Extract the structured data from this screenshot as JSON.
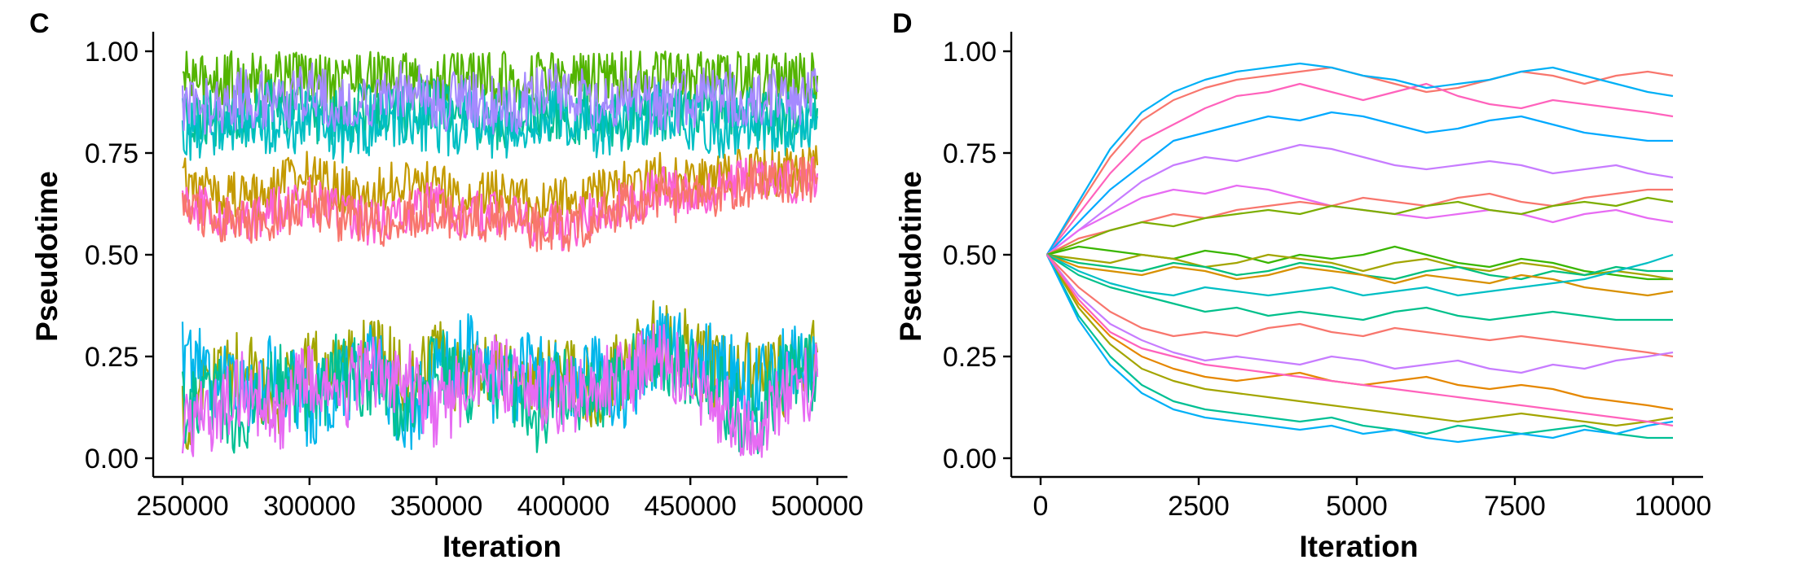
{
  "chart_data": [
    {
      "panel": "C",
      "type": "line",
      "xlabel": "Iteration",
      "ylabel": "Pseudotime",
      "xlim": [
        250000,
        500000
      ],
      "ylim": [
        0,
        1
      ],
      "x_ticks": [
        250000,
        300000,
        350000,
        400000,
        450000,
        500000
      ],
      "x_tick_labels": [
        "250000",
        "300000",
        "350000",
        "400000",
        "450000",
        "500000"
      ],
      "y_ticks": [
        0,
        0.25,
        0.5,
        0.75,
        1
      ],
      "y_tick_labels": [
        "0.00",
        "0.25",
        "0.50",
        "0.75",
        "1.00"
      ],
      "grid": false,
      "legend": "none",
      "x": [
        250000,
        262500,
        275000,
        287500,
        300000,
        312500,
        325000,
        337500,
        350000,
        362500,
        375000,
        387500,
        400000,
        412500,
        425000,
        437500,
        450000,
        462500,
        475000,
        487500,
        500000
      ],
      "series": [
        {
          "color": "#53B400",
          "values": [
            0.93,
            0.95,
            0.92,
            0.94,
            0.96,
            0.93,
            0.95,
            0.94,
            0.92,
            0.95,
            0.93,
            0.94,
            0.96,
            0.94,
            0.93,
            0.95,
            0.94,
            0.96,
            0.93,
            0.95,
            0.94
          ]
        },
        {
          "color": "#00C094",
          "values": [
            0.86,
            0.84,
            0.82,
            0.87,
            0.85,
            0.83,
            0.86,
            0.84,
            0.88,
            0.85,
            0.83,
            0.86,
            0.84,
            0.85,
            0.82,
            0.86,
            0.84,
            0.87,
            0.85,
            0.83,
            0.86
          ]
        },
        {
          "color": "#00BFC4",
          "values": [
            0.8,
            0.82,
            0.84,
            0.81,
            0.83,
            0.8,
            0.82,
            0.85,
            0.81,
            0.83,
            0.8,
            0.82,
            0.84,
            0.81,
            0.83,
            0.85,
            0.82,
            0.8,
            0.83,
            0.81,
            0.84
          ]
        },
        {
          "color": "#A58AFF",
          "values": [
            0.88,
            0.86,
            0.89,
            0.87,
            0.9,
            0.86,
            0.88,
            0.91,
            0.87,
            0.89,
            0.86,
            0.88,
            0.9,
            0.87,
            0.89,
            0.86,
            0.88,
            0.9,
            0.87,
            0.89,
            0.9
          ]
        },
        {
          "color": "#C49A00",
          "values": [
            0.68,
            0.66,
            0.64,
            0.67,
            0.7,
            0.66,
            0.65,
            0.69,
            0.67,
            0.64,
            0.66,
            0.62,
            0.63,
            0.65,
            0.68,
            0.7,
            0.67,
            0.69,
            0.71,
            0.7,
            0.72
          ]
        },
        {
          "color": "#FB61D7",
          "values": [
            0.62,
            0.6,
            0.59,
            0.61,
            0.63,
            0.6,
            0.58,
            0.61,
            0.62,
            0.59,
            0.61,
            0.58,
            0.57,
            0.6,
            0.63,
            0.66,
            0.64,
            0.67,
            0.69,
            0.68,
            0.7
          ]
        },
        {
          "color": "#F8766D",
          "values": [
            0.61,
            0.59,
            0.58,
            0.6,
            0.62,
            0.59,
            0.57,
            0.6,
            0.61,
            0.58,
            0.6,
            0.57,
            0.56,
            0.59,
            0.62,
            0.65,
            0.63,
            0.66,
            0.68,
            0.67,
            0.69
          ]
        },
        {
          "color": "#A3A500",
          "values": [
            0.1,
            0.18,
            0.22,
            0.15,
            0.25,
            0.2,
            0.28,
            0.18,
            0.24,
            0.2,
            0.22,
            0.18,
            0.2,
            0.17,
            0.22,
            0.3,
            0.26,
            0.2,
            0.24,
            0.2,
            0.26
          ]
        },
        {
          "color": "#00B6EB",
          "values": [
            0.25,
            0.2,
            0.15,
            0.22,
            0.12,
            0.18,
            0.24,
            0.1,
            0.2,
            0.26,
            0.15,
            0.22,
            0.18,
            0.2,
            0.16,
            0.28,
            0.25,
            0.22,
            0.18,
            0.24,
            0.2
          ]
        },
        {
          "color": "#00C094",
          "values": [
            0.12,
            0.16,
            0.08,
            0.2,
            0.14,
            0.22,
            0.18,
            0.12,
            0.24,
            0.16,
            0.2,
            0.1,
            0.18,
            0.14,
            0.2,
            0.26,
            0.22,
            0.15,
            0.08,
            0.2,
            0.22
          ]
        },
        {
          "color": "#E76BF3",
          "values": [
            0.05,
            0.12,
            0.18,
            0.1,
            0.2,
            0.15,
            0.22,
            0.2,
            0.12,
            0.18,
            0.22,
            0.16,
            0.14,
            0.18,
            0.2,
            0.24,
            0.2,
            0.12,
            0.04,
            0.16,
            0.2
          ]
        }
      ]
    },
    {
      "panel": "D",
      "type": "line",
      "xlabel": "Iteration",
      "ylabel": "Pseudotime",
      "xlim": [
        0,
        10000
      ],
      "ylim": [
        0,
        1
      ],
      "x_ticks": [
        0,
        2500,
        5000,
        7500,
        10000
      ],
      "x_tick_labels": [
        "0",
        "2500",
        "5000",
        "7500",
        "10000"
      ],
      "y_ticks": [
        0,
        0.25,
        0.5,
        0.75,
        1
      ],
      "y_tick_labels": [
        "0.00",
        "0.25",
        "0.50",
        "0.75",
        "1.00"
      ],
      "grid": false,
      "legend": "none",
      "x": [
        100,
        600,
        1100,
        1600,
        2100,
        2600,
        3100,
        3600,
        4100,
        4600,
        5100,
        5600,
        6100,
        6600,
        7100,
        7600,
        8100,
        8600,
        9100,
        9600,
        10000
      ],
      "series": [
        {
          "color": "#F8766D",
          "values": [
            0.5,
            0.62,
            0.74,
            0.83,
            0.88,
            0.91,
            0.93,
            0.94,
            0.95,
            0.96,
            0.94,
            0.92,
            0.9,
            0.91,
            0.93,
            0.95,
            0.94,
            0.92,
            0.94,
            0.95,
            0.94
          ]
        },
        {
          "color": "#FF62BC",
          "values": [
            0.5,
            0.6,
            0.7,
            0.78,
            0.82,
            0.86,
            0.89,
            0.9,
            0.92,
            0.9,
            0.88,
            0.9,
            0.92,
            0.89,
            0.87,
            0.86,
            0.88,
            0.87,
            0.86,
            0.85,
            0.84
          ]
        },
        {
          "color": "#00B0F6",
          "values": [
            0.5,
            0.63,
            0.76,
            0.85,
            0.9,
            0.93,
            0.95,
            0.96,
            0.97,
            0.96,
            0.94,
            0.93,
            0.91,
            0.92,
            0.93,
            0.95,
            0.96,
            0.94,
            0.92,
            0.9,
            0.89
          ]
        },
        {
          "color": "#00A9FF",
          "values": [
            0.5,
            0.58,
            0.66,
            0.72,
            0.78,
            0.8,
            0.82,
            0.84,
            0.83,
            0.85,
            0.84,
            0.82,
            0.8,
            0.81,
            0.83,
            0.84,
            0.82,
            0.8,
            0.79,
            0.78,
            0.78
          ]
        },
        {
          "color": "#C77CFF",
          "values": [
            0.5,
            0.56,
            0.62,
            0.68,
            0.72,
            0.74,
            0.73,
            0.75,
            0.77,
            0.76,
            0.74,
            0.72,
            0.71,
            0.72,
            0.73,
            0.72,
            0.7,
            0.71,
            0.72,
            0.7,
            0.69
          ]
        },
        {
          "color": "#E76BF3",
          "values": [
            0.5,
            0.56,
            0.6,
            0.64,
            0.66,
            0.65,
            0.67,
            0.66,
            0.64,
            0.62,
            0.61,
            0.6,
            0.59,
            0.6,
            0.61,
            0.6,
            0.58,
            0.6,
            0.61,
            0.59,
            0.58
          ]
        },
        {
          "color": "#F8766D",
          "values": [
            0.5,
            0.54,
            0.56,
            0.58,
            0.6,
            0.59,
            0.61,
            0.62,
            0.63,
            0.62,
            0.64,
            0.63,
            0.62,
            0.64,
            0.65,
            0.63,
            0.62,
            0.64,
            0.65,
            0.66,
            0.66
          ]
        },
        {
          "color": "#7CAE00",
          "values": [
            0.5,
            0.53,
            0.56,
            0.58,
            0.57,
            0.59,
            0.6,
            0.61,
            0.6,
            0.62,
            0.61,
            0.6,
            0.62,
            0.63,
            0.61,
            0.6,
            0.62,
            0.63,
            0.62,
            0.64,
            0.63
          ]
        },
        {
          "color": "#39B600",
          "values": [
            0.5,
            0.52,
            0.51,
            0.5,
            0.49,
            0.51,
            0.5,
            0.48,
            0.5,
            0.49,
            0.5,
            0.52,
            0.5,
            0.48,
            0.47,
            0.49,
            0.48,
            0.46,
            0.45,
            0.44,
            0.44
          ]
        },
        {
          "color": "#A3A500",
          "values": [
            0.5,
            0.49,
            0.48,
            0.5,
            0.49,
            0.47,
            0.48,
            0.5,
            0.49,
            0.48,
            0.46,
            0.48,
            0.49,
            0.47,
            0.46,
            0.48,
            0.47,
            0.45,
            0.46,
            0.45,
            0.44
          ]
        },
        {
          "color": "#00BF7D",
          "values": [
            0.5,
            0.48,
            0.47,
            0.46,
            0.48,
            0.47,
            0.45,
            0.46,
            0.48,
            0.47,
            0.45,
            0.44,
            0.46,
            0.47,
            0.45,
            0.44,
            0.46,
            0.45,
            0.47,
            0.46,
            0.46
          ]
        },
        {
          "color": "#D89000",
          "values": [
            0.5,
            0.47,
            0.46,
            0.45,
            0.47,
            0.46,
            0.44,
            0.45,
            0.47,
            0.46,
            0.45,
            0.43,
            0.45,
            0.44,
            0.43,
            0.45,
            0.44,
            0.42,
            0.41,
            0.4,
            0.41
          ]
        },
        {
          "color": "#00BFC4",
          "values": [
            0.5,
            0.46,
            0.43,
            0.41,
            0.4,
            0.42,
            0.41,
            0.4,
            0.41,
            0.42,
            0.4,
            0.41,
            0.42,
            0.4,
            0.41,
            0.42,
            0.43,
            0.44,
            0.46,
            0.48,
            0.5
          ]
        },
        {
          "color": "#00C08B",
          "values": [
            0.5,
            0.45,
            0.42,
            0.4,
            0.38,
            0.36,
            0.37,
            0.35,
            0.36,
            0.35,
            0.34,
            0.36,
            0.37,
            0.35,
            0.34,
            0.35,
            0.36,
            0.35,
            0.34,
            0.34,
            0.34
          ]
        },
        {
          "color": "#F8766D",
          "values": [
            0.5,
            0.42,
            0.36,
            0.32,
            0.3,
            0.31,
            0.3,
            0.32,
            0.33,
            0.31,
            0.3,
            0.32,
            0.31,
            0.3,
            0.29,
            0.3,
            0.29,
            0.28,
            0.27,
            0.26,
            0.25
          ]
        },
        {
          "color": "#C77CFF",
          "values": [
            0.5,
            0.4,
            0.33,
            0.29,
            0.26,
            0.24,
            0.25,
            0.24,
            0.23,
            0.25,
            0.24,
            0.22,
            0.23,
            0.24,
            0.22,
            0.21,
            0.23,
            0.22,
            0.24,
            0.25,
            0.26
          ]
        },
        {
          "color": "#E58700",
          "values": [
            0.5,
            0.38,
            0.3,
            0.25,
            0.22,
            0.2,
            0.19,
            0.2,
            0.21,
            0.19,
            0.18,
            0.19,
            0.2,
            0.18,
            0.17,
            0.18,
            0.17,
            0.15,
            0.14,
            0.13,
            0.12
          ]
        },
        {
          "color": "#A3A500",
          "values": [
            0.5,
            0.37,
            0.28,
            0.22,
            0.19,
            0.17,
            0.16,
            0.15,
            0.14,
            0.13,
            0.12,
            0.11,
            0.1,
            0.09,
            0.1,
            0.11,
            0.1,
            0.09,
            0.08,
            0.09,
            0.1
          ]
        },
        {
          "color": "#00C094",
          "values": [
            0.5,
            0.35,
            0.25,
            0.18,
            0.14,
            0.12,
            0.11,
            0.1,
            0.09,
            0.1,
            0.08,
            0.07,
            0.06,
            0.08,
            0.07,
            0.06,
            0.07,
            0.08,
            0.06,
            0.05,
            0.05
          ]
        },
        {
          "color": "#00B0F6",
          "values": [
            0.5,
            0.34,
            0.23,
            0.16,
            0.12,
            0.1,
            0.09,
            0.08,
            0.07,
            0.08,
            0.06,
            0.07,
            0.05,
            0.04,
            0.05,
            0.06,
            0.05,
            0.07,
            0.06,
            0.08,
            0.09
          ]
        },
        {
          "color": "#FF62BC",
          "values": [
            0.5,
            0.39,
            0.31,
            0.27,
            0.25,
            0.23,
            0.22,
            0.21,
            0.2,
            0.19,
            0.18,
            0.17,
            0.16,
            0.15,
            0.14,
            0.13,
            0.12,
            0.11,
            0.1,
            0.09,
            0.08
          ]
        }
      ]
    }
  ]
}
